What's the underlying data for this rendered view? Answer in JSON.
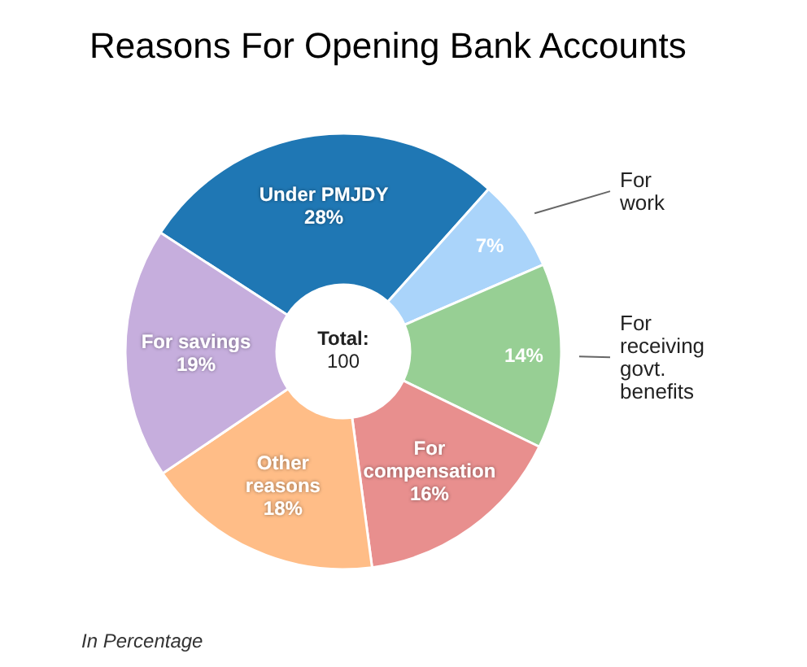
{
  "chart_data": {
    "type": "donut",
    "title": "Reasons For Opening Bank Accounts",
    "categories": [
      "Under PMJDY",
      "For work",
      "For receiving govt. benefits",
      "For compensation",
      "Other reasons",
      "For savings"
    ],
    "values": [
      28,
      7,
      14,
      16,
      18,
      19
    ],
    "colors": [
      "#1f77b4",
      "#aad4fa",
      "#97cf94",
      "#e88f8e",
      "#ffbd87",
      "#c6aedd"
    ],
    "value_labels": [
      "28%",
      "7%",
      "14%",
      "16%",
      "18%",
      "19%"
    ],
    "annotations": [
      "Total: 100",
      "In Percentage"
    ]
  }
}
